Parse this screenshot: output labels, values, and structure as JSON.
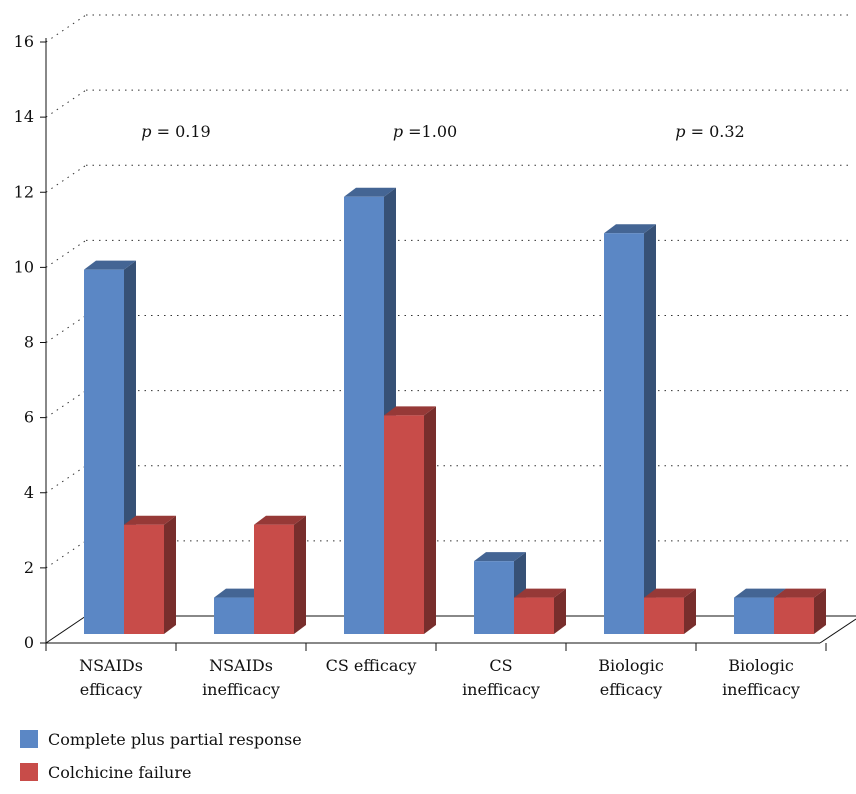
{
  "chart_data": {
    "type": "bar",
    "categories": [
      [
        "NSAIDs",
        "efficacy"
      ],
      [
        "NSAIDs",
        "inefficacy"
      ],
      [
        "CS efficacy"
      ],
      [
        "CS",
        "inefficacy"
      ],
      [
        "Biologic",
        "efficacy"
      ],
      [
        "Biologic",
        "inefficacy"
      ]
    ],
    "series": [
      {
        "name": "Complete plus partial response",
        "color": "#5b87c5",
        "values": [
          10,
          1,
          12,
          2,
          11,
          1
        ]
      },
      {
        "name": "Colchicine failure",
        "color": "#c84c49",
        "values": [
          3,
          3,
          6,
          1,
          1,
          1
        ]
      }
    ],
    "yticks": [
      0,
      2,
      4,
      6,
      8,
      10,
      12,
      14,
      16
    ],
    "ylim": [
      0,
      16
    ],
    "grid": true,
    "legend_position": "bottom-left",
    "annotations": [
      {
        "italic": "p",
        "text": " = 0.19"
      },
      {
        "italic": "p",
        "text": " =1.00"
      },
      {
        "italic": "p",
        "text": " = 0.32"
      }
    ]
  }
}
